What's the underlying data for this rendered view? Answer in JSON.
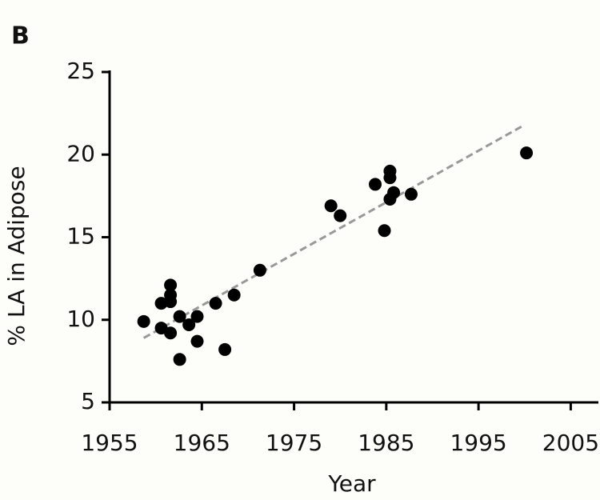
{
  "panel_label": "B",
  "chart_data": {
    "type": "scatter",
    "x_label": "Year",
    "y_label": "% LA in Adipose",
    "xlim": [
      1955,
      2008
    ],
    "xticks": [
      1955,
      1965,
      1975,
      1985,
      1995,
      2005
    ],
    "ylim": [
      5,
      25
    ],
    "yticks": [
      5,
      10,
      15,
      20,
      25
    ],
    "series": [
      {
        "color": "#000000",
        "x": [
          1958.7,
          1960.6,
          1960.6,
          1961.6,
          1961.6,
          1961.6,
          1961.6,
          1962.6,
          1962.6,
          1963.6,
          1964.5,
          1964.5,
          1966.5,
          1967.5,
          1968.5,
          1971.3,
          1979.0,
          1980.0,
          1983.8,
          1984.8,
          1985.4,
          1985.4,
          1985.4,
          1985.8,
          1987.7,
          2000.2
        ],
        "values": [
          9.9,
          11.0,
          9.5,
          12.1,
          11.5,
          11.1,
          9.2,
          10.2,
          7.6,
          9.7,
          10.2,
          8.7,
          11.0,
          8.2,
          11.5,
          13.0,
          16.9,
          16.3,
          18.2,
          15.4,
          19.0,
          18.6,
          17.3,
          17.7,
          17.6,
          20.1
        ]
      }
    ],
    "trendline": {
      "color": "#999999",
      "x": [
        1958.7,
        2000.0
      ],
      "values": [
        8.9,
        21.8
      ]
    }
  }
}
